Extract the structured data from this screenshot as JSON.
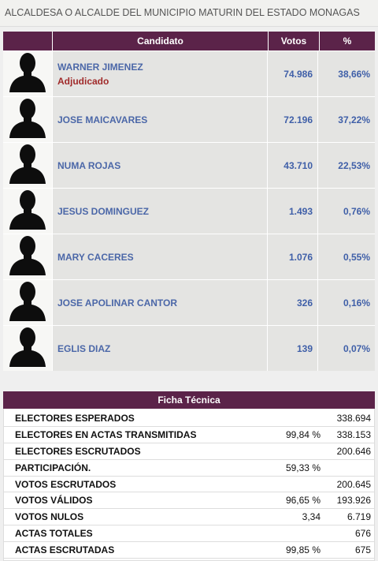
{
  "page_title": "ALCALDESA O ALCALDE DEL MUNICIPIO MATURIN DEL ESTADO MONAGAS",
  "results": {
    "headers": {
      "candidate": "Candidato",
      "votes": "Votos",
      "percent": "%"
    },
    "rows": [
      {
        "name": "WARNER JIMENEZ",
        "status": "Adjudicado",
        "votes": "74.986",
        "percent": "38,66%",
        "avatar_icon": "person-silhouette-icon"
      },
      {
        "name": "JOSE MAICAVARES",
        "status": "",
        "votes": "72.196",
        "percent": "37,22%",
        "avatar_icon": "person-silhouette-icon"
      },
      {
        "name": "NUMA ROJAS",
        "status": "",
        "votes": "43.710",
        "percent": "22,53%",
        "avatar_icon": "person-silhouette-icon"
      },
      {
        "name": "JESUS DOMINGUEZ",
        "status": "",
        "votes": "1.493",
        "percent": "0,76%",
        "avatar_icon": "person-silhouette-icon"
      },
      {
        "name": "MARY CACERES",
        "status": "",
        "votes": "1.076",
        "percent": "0,55%",
        "avatar_icon": "person-silhouette-icon"
      },
      {
        "name": "JOSE APOLINAR CANTOR",
        "status": "",
        "votes": "326",
        "percent": "0,16%",
        "avatar_icon": "person-silhouette-icon"
      },
      {
        "name": "EGLIS DIAZ",
        "status": "",
        "votes": "139",
        "percent": "0,07%",
        "avatar_icon": "person-silhouette-icon"
      }
    ]
  },
  "ficha": {
    "title": "Ficha Técnica",
    "rows": [
      {
        "label": "ELECTORES ESPERADOS",
        "percent": "",
        "value": "338.694"
      },
      {
        "label": "ELECTORES EN ACTAS TRANSMITIDAS",
        "percent": "99,84 %",
        "value": "338.153"
      },
      {
        "label": "ELECTORES ESCRUTADOS",
        "percent": "",
        "value": "200.646"
      },
      {
        "label": "PARTICIPACIÓN.",
        "percent": "59,33 %",
        "value": ""
      },
      {
        "label": "VOTOS ESCRUTADOS",
        "percent": "",
        "value": "200.645"
      },
      {
        "label": "VOTOS VÁLIDOS",
        "percent": "96,65 %",
        "value": "193.926"
      },
      {
        "label": "VOTOS NULOS",
        "percent": "3,34",
        "value": "6.719"
      },
      {
        "label": "ACTAS TOTALES",
        "percent": "",
        "value": "676"
      },
      {
        "label": "ACTAS ESCRUTADAS",
        "percent": "99,85 %",
        "value": "675"
      }
    ]
  },
  "colors": {
    "header_bg": "#5b2349",
    "candidate_name": "#4b67a8",
    "status_adjudicado": "#a02a2a",
    "number_blue": "#3f5fa8"
  }
}
